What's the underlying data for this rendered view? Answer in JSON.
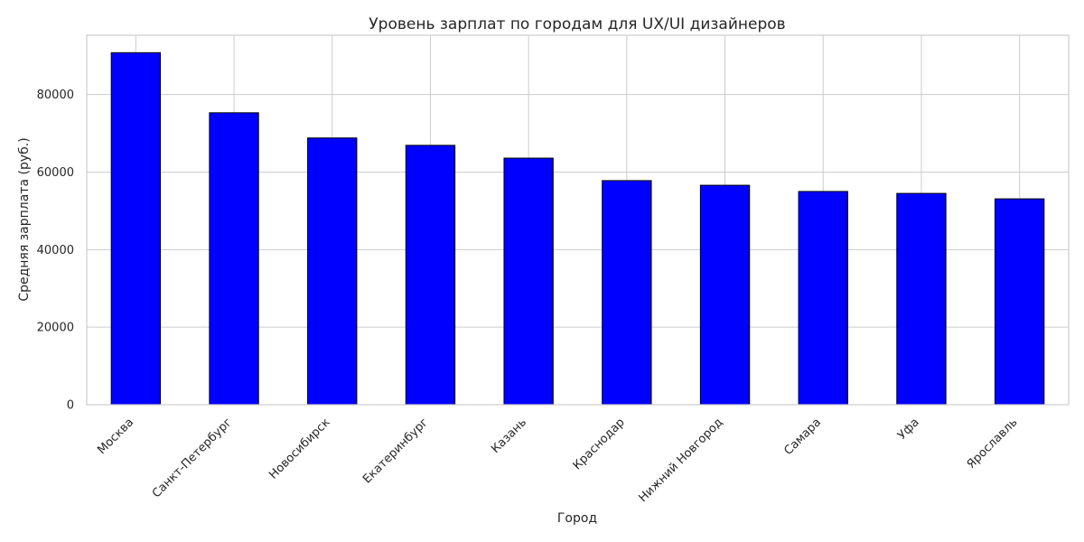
{
  "chart_data": {
    "type": "bar",
    "title": "Уровень зарплат по городам для UX/UI дизайнеров",
    "xlabel": "Город",
    "ylabel": "Средняя зарплата (руб.)",
    "categories": [
      "Москва",
      "Санкт-Петербург",
      "Новосибирск",
      "Екатеринбург",
      "Казань",
      "Краснодар",
      "Нижний Новгород",
      "Самара",
      "Уфа",
      "Ярославль"
    ],
    "values": [
      90800,
      75300,
      68800,
      66900,
      63600,
      57800,
      56600,
      55000,
      54500,
      53100
    ],
    "ylim": [
      0,
      95300
    ],
    "yticks": [
      0,
      20000,
      40000,
      60000,
      80000
    ],
    "yticks_labels": [
      "0",
      "20000",
      "40000",
      "60000",
      "80000"
    ],
    "grid": true,
    "bar_color": "#0000ff",
    "edge_color": "#000000",
    "grid_color": "#cccccc"
  }
}
